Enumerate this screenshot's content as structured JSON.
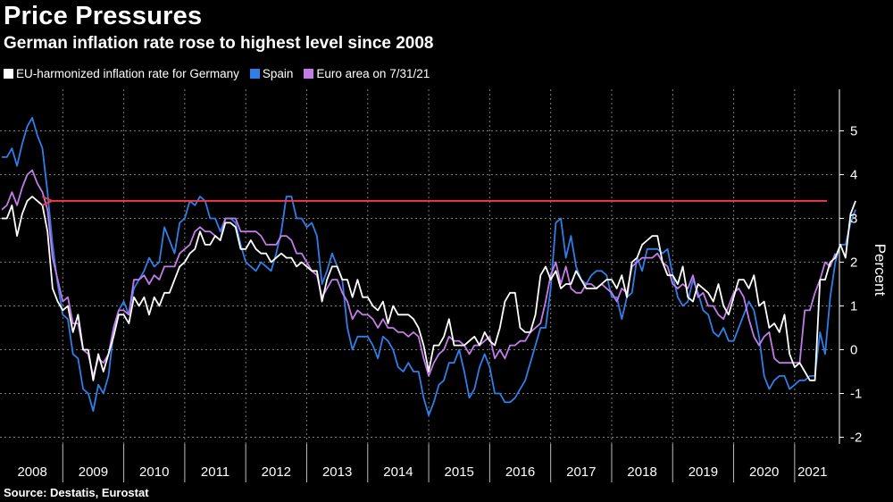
{
  "header": {
    "title": "Price Pressures",
    "subtitle": "German inflation rate rose to highest level since 2008",
    "source": "Source: Destatis, Eurostat"
  },
  "colors": {
    "background": "#000000",
    "germany": "#ffffff",
    "spain": "#2f7fe6",
    "euro": "#c27ce8",
    "annotation": "#f0394b",
    "grid": "#7a7a7a"
  },
  "chart_data": {
    "type": "line",
    "title": "Price Pressures",
    "subtitle": "German inflation rate rose to highest level since 2008",
    "ylabel": "Percent",
    "ylim": [
      -2,
      6
    ],
    "yticks": [
      -2,
      -1,
      0,
      1,
      2,
      3,
      4,
      5
    ],
    "xrange": [
      "2008-01",
      "2021-07"
    ],
    "year_labels": [
      "2008",
      "2009",
      "2010",
      "2011",
      "2012",
      "2013",
      "2014",
      "2015",
      "2016",
      "2017",
      "2018",
      "2019",
      "2020",
      "2021"
    ],
    "grid": true,
    "legend_position": "top-left",
    "annotation": {
      "type": "arrow",
      "y": 3.4,
      "from": "2021-07",
      "to": "2008-10"
    },
    "series": [
      {
        "name": "EU-harmonized inflation rate for Germany",
        "start": "2008-01",
        "values": [
          3.0,
          3.0,
          3.3,
          2.6,
          3.1,
          3.4,
          3.5,
          3.4,
          3.3,
          2.7,
          1.4,
          1.1,
          0.9,
          1.0,
          0.4,
          0.8,
          0.0,
          0.0,
          -0.7,
          -0.1,
          -0.5,
          -0.1,
          0.3,
          0.8,
          0.8,
          0.6,
          1.2,
          1.0,
          1.2,
          0.8,
          1.2,
          1.0,
          1.3,
          1.3,
          1.6,
          1.9,
          2.0,
          2.2,
          2.3,
          2.7,
          2.4,
          2.4,
          2.6,
          2.5,
          2.9,
          2.9,
          2.8,
          2.3,
          2.3,
          2.5,
          2.3,
          2.2,
          2.2,
          2.0,
          2.1,
          2.2,
          2.1,
          2.1,
          1.9,
          2.0,
          1.9,
          1.8,
          1.8,
          1.1,
          1.6,
          1.9,
          1.9,
          1.6,
          1.6,
          1.2,
          1.6,
          1.2,
          1.2,
          1.0,
          0.9,
          1.1,
          0.6,
          1.0,
          0.8,
          0.8,
          0.8,
          0.7,
          0.5,
          0.1,
          -0.5,
          0.1,
          0.1,
          0.3,
          0.7,
          0.1,
          0.1,
          0.1,
          0.2,
          0.3,
          0.1,
          0.4,
          0.2,
          0.1,
          0.5,
          1.1,
          1.3,
          1.3,
          0.5,
          0.4,
          0.4,
          0.8,
          1.7,
          1.9,
          1.6,
          1.8,
          1.4,
          1.5,
          1.5,
          1.8,
          1.6,
          1.4,
          1.4,
          1.4,
          1.5,
          1.6,
          1.6,
          1.4,
          1.7,
          1.2,
          2.0,
          2.1,
          2.4,
          2.5,
          2.6,
          2.6,
          2.0,
          1.7,
          1.7,
          1.5,
          1.9,
          1.2,
          1.1,
          1.5,
          1.4,
          1.3,
          1.1,
          1.5,
          1.0,
          0.8,
          1.2,
          1.6,
          1.6,
          1.4,
          1.7,
          1.0,
          1.1,
          0.5,
          0.6,
          0.4,
          0.8,
          -0.1,
          -0.4,
          -0.3,
          -0.5,
          -0.7,
          -0.7,
          1.6,
          1.6,
          2.0,
          2.1,
          2.4,
          2.1,
          3.1,
          3.4
        ]
      },
      {
        "name": "Spain",
        "start": "2008-01",
        "values": [
          4.4,
          4.4,
          4.6,
          4.2,
          4.7,
          5.1,
          5.3,
          4.9,
          4.6,
          3.6,
          2.4,
          1.5,
          0.8,
          0.7,
          -0.1,
          -0.2,
          -0.9,
          -1.0,
          -1.4,
          -0.8,
          -1.0,
          -0.6,
          0.4,
          0.9,
          1.1,
          0.8,
          1.4,
          1.6,
          1.8,
          2.1,
          1.9,
          2.0,
          2.8,
          2.5,
          2.2,
          2.9,
          3.0,
          3.4,
          3.3,
          3.5,
          3.4,
          3.0,
          3.0,
          2.7,
          3.0,
          3.0,
          2.9,
          2.4,
          2.0,
          1.9,
          1.8,
          2.0,
          1.9,
          1.8,
          2.2,
          2.7,
          3.5,
          3.5,
          3.0,
          3.0,
          2.8,
          2.9,
          2.6,
          1.5,
          1.8,
          2.2,
          1.9,
          1.6,
          0.5,
          0.0,
          0.3,
          0.3,
          0.3,
          0.1,
          -0.2,
          0.3,
          0.2,
          0.0,
          -0.4,
          -0.5,
          -0.3,
          -0.5,
          -0.5,
          -1.1,
          -1.5,
          -1.2,
          -0.8,
          -0.7,
          -0.3,
          -0.3,
          0.0,
          -0.5,
          -1.1,
          -0.9,
          -0.4,
          -0.1,
          -0.4,
          -1.0,
          -1.0,
          -1.2,
          -1.2,
          -1.1,
          -0.9,
          -0.7,
          -0.3,
          0.1,
          0.5,
          0.5,
          1.4,
          2.9,
          3.0,
          2.1,
          2.6,
          1.9,
          1.6,
          1.5,
          1.7,
          1.8,
          1.8,
          1.7,
          1.2,
          1.2,
          0.7,
          1.2,
          1.3,
          2.1,
          1.8,
          2.3,
          2.3,
          2.3,
          2.2,
          2.3,
          1.7,
          1.2,
          1.0,
          1.1,
          1.6,
          1.3,
          0.9,
          0.8,
          0.4,
          0.3,
          0.5,
          0.2,
          0.2,
          0.5,
          0.8,
          1.1,
          0.9,
          0.3,
          -0.6,
          -0.9,
          -0.7,
          -0.6,
          -0.6,
          -0.9,
          -0.8,
          -0.7,
          -0.7,
          -0.6,
          -0.6,
          0.4,
          -0.1,
          1.2,
          2.0,
          2.4,
          2.4,
          2.9,
          3.2
        ]
      },
      {
        "name": "Euro area on 7/31/21",
        "start": "2008-01",
        "values": [
          3.2,
          3.3,
          3.6,
          3.3,
          3.7,
          4.0,
          4.1,
          3.8,
          3.6,
          3.2,
          2.1,
          1.6,
          1.1,
          1.2,
          0.6,
          0.6,
          0.0,
          -0.1,
          -0.6,
          -0.2,
          -0.3,
          -0.1,
          0.5,
          0.9,
          0.9,
          0.8,
          1.6,
          1.6,
          1.7,
          1.5,
          1.7,
          1.6,
          1.9,
          1.9,
          1.9,
          2.2,
          2.3,
          2.4,
          2.7,
          2.8,
          2.7,
          2.7,
          2.6,
          2.5,
          3.0,
          3.0,
          3.0,
          2.7,
          2.7,
          2.7,
          2.7,
          2.6,
          2.4,
          2.4,
          2.4,
          2.6,
          2.6,
          2.5,
          2.2,
          2.2,
          2.0,
          1.8,
          1.7,
          1.2,
          1.4,
          1.6,
          1.6,
          1.3,
          1.1,
          0.7,
          0.9,
          0.8,
          0.8,
          0.7,
          0.5,
          0.7,
          0.5,
          0.5,
          0.4,
          0.4,
          0.3,
          0.4,
          0.3,
          -0.2,
          -0.6,
          -0.3,
          -0.1,
          0.0,
          0.3,
          0.2,
          0.2,
          0.1,
          -0.1,
          0.1,
          0.1,
          0.2,
          0.3,
          -0.2,
          0.0,
          -0.2,
          0.1,
          0.1,
          0.2,
          0.2,
          0.4,
          0.5,
          0.6,
          1.1,
          1.7,
          2.0,
          1.5,
          1.9,
          1.4,
          1.3,
          1.3,
          1.5,
          1.5,
          1.4,
          1.5,
          1.4,
          1.3,
          1.1,
          1.4,
          1.3,
          1.9,
          2.0,
          2.1,
          2.1,
          2.1,
          2.2,
          2.0,
          1.9,
          1.5,
          1.4,
          1.5,
          1.4,
          1.7,
          1.2,
          1.3,
          1.0,
          1.0,
          0.8,
          0.7,
          1.0,
          1.3,
          1.4,
          1.2,
          0.7,
          0.3,
          0.1,
          0.3,
          0.4,
          -0.2,
          -0.3,
          -0.3,
          -0.3,
          -0.3,
          -0.3,
          0.9,
          0.9,
          1.3,
          1.6,
          2.0,
          1.9,
          2.2
        ]
      }
    ]
  }
}
